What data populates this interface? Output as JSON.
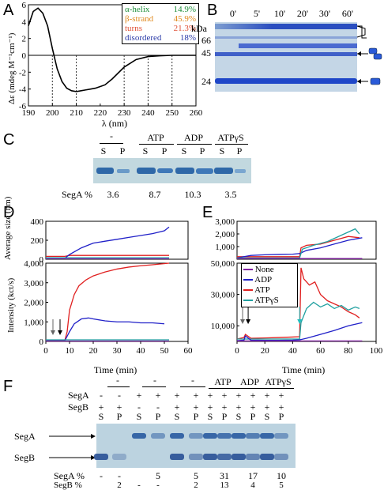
{
  "panels": {
    "A": "A",
    "B": "B",
    "C": "C",
    "D": "D",
    "E": "E",
    "F": "F"
  },
  "panelA": {
    "chart_data": {
      "type": "line",
      "xlabel": "λ (nm)",
      "ylabel": "Δε (mdeg M⁻¹cm⁻¹)",
      "xlim": [
        190,
        260
      ],
      "ylim": [
        -6,
        6
      ],
      "x_ticks": [
        190,
        200,
        210,
        220,
        230,
        240,
        250,
        260
      ],
      "y_ticks": [
        -6,
        -4,
        -2,
        0,
        2,
        4,
        6
      ],
      "series": [
        {
          "x": [
            190,
            192,
            194,
            196,
            198,
            200,
            202,
            204,
            206,
            208,
            210,
            212,
            214,
            216,
            218,
            220,
            222,
            225,
            230,
            235,
            240,
            245,
            250,
            255,
            260
          ],
          "values": [
            3.5,
            5.2,
            5.6,
            5.0,
            3.5,
            0.8,
            -1.6,
            -3.1,
            -3.9,
            -4.2,
            -4.3,
            -4.2,
            -4.1,
            -4.0,
            -3.9,
            -3.7,
            -3.5,
            -2.8,
            -1.4,
            -0.5,
            -0.15,
            -0.05,
            0,
            0,
            0
          ]
        }
      ],
      "dashed_x": [
        200,
        210,
        230,
        240,
        250
      ],
      "legend": [
        {
          "label": "α-helix",
          "value": "14.9%",
          "color": "#1f8f3a"
        },
        {
          "label": "β-strand",
          "value": "45.9%",
          "color": "#e08a1e"
        },
        {
          "label": "turns",
          "value": "21.3%",
          "color": "#e0543a"
        },
        {
          "label": "disordered",
          "value": "18%",
          "color": "#2a3aa8"
        }
      ]
    }
  },
  "panelB": {
    "times": [
      "0'",
      "5'",
      "10'",
      "20'",
      "30'",
      "60'"
    ],
    "kda_label": "kDa",
    "markers": [
      "66",
      "45",
      "24"
    ]
  },
  "panelC": {
    "groups": [
      "-",
      "ATP",
      "ADP",
      "ATPγS"
    ],
    "lanes": [
      "S",
      "P",
      "S",
      "P",
      "S",
      "P",
      "S",
      "P"
    ],
    "row_label": "SegA %",
    "values": [
      "3.6",
      "8.7",
      "10.3",
      "3.5"
    ]
  },
  "panelD": {
    "chart_data": [
      {
        "type": "line",
        "ylabel": "Average size (nm)",
        "xlim": [
          0,
          60
        ],
        "ylim": [
          0,
          400
        ],
        "y_ticks": [
          "0",
          "200",
          "400"
        ],
        "series": [
          {
            "name": "ATP",
            "color": "#e02020",
            "x": [
              0,
              8,
              10,
              20,
              30,
              40,
              52
            ],
            "values": [
              30,
              30,
              40,
              40,
              40,
              40,
              40
            ]
          },
          {
            "name": "ADP",
            "color": "#2020c8",
            "x": [
              0,
              8,
              10,
              15,
              20,
              25,
              30,
              35,
              40,
              45,
              50,
              52
            ],
            "values": [
              10,
              10,
              50,
              120,
              170,
              190,
              210,
              230,
              250,
              270,
              300,
              340
            ]
          },
          {
            "name": "ATPγS",
            "color": "#20a0a0",
            "x": [
              0,
              52
            ],
            "values": [
              15,
              15
            ]
          },
          {
            "name": "None",
            "color": "#8020a0",
            "x": [
              0,
              52
            ],
            "values": [
              5,
              5
            ]
          }
        ]
      },
      {
        "type": "line",
        "xlabel": "Time (min)",
        "ylabel": "Intensity (kct/s)",
        "xlim": [
          0,
          60
        ],
        "ylim": [
          0,
          4000
        ],
        "x_ticks": [
          "0",
          "10",
          "20",
          "30",
          "40",
          "50",
          "60"
        ],
        "y_ticks": [
          "0",
          "1,000",
          "2,000",
          "3,000",
          "4,000"
        ],
        "series": [
          {
            "name": "ATP",
            "color": "#e02020",
            "x": [
              0,
              8,
              9,
              10,
              12,
              14,
              17,
              20,
              25,
              30,
              35,
              40,
              45,
              52
            ],
            "values": [
              50,
              50,
              500,
              1600,
              2400,
              2850,
              3150,
              3350,
              3550,
              3700,
              3800,
              3870,
              3920,
              4000
            ]
          },
          {
            "name": "ADP",
            "color": "#2020c8",
            "x": [
              0,
              8,
              10,
              12,
              15,
              18,
              20,
              25,
              30,
              35,
              40,
              45,
              50
            ],
            "values": [
              30,
              30,
              500,
              900,
              1150,
              1200,
              1150,
              1050,
              1000,
              1000,
              950,
              950,
              900
            ]
          },
          {
            "name": "ATPγS",
            "color": "#20a0a0",
            "x": [
              0,
              52
            ],
            "values": [
              80,
              80
            ]
          },
          {
            "name": "None",
            "color": "#8020a0",
            "x": [
              0,
              52
            ],
            "values": [
              20,
              20
            ]
          }
        ]
      }
    ]
  },
  "panelE": {
    "legend": [
      {
        "label": "None",
        "color": "#8020a0"
      },
      {
        "label": "ADP",
        "color": "#2020c8"
      },
      {
        "label": "ATP",
        "color": "#e02020"
      },
      {
        "label": "ATPγS",
        "color": "#20a0a0"
      }
    ],
    "chart_data": [
      {
        "type": "line",
        "xlim": [
          0,
          100
        ],
        "ylim": [
          0,
          3000
        ],
        "y_ticks": [
          "1,000",
          "2,000",
          "3,000"
        ],
        "series": [
          {
            "name": "ATP",
            "color": "#e02020",
            "x": [
              0,
              45,
              46,
              50,
              60,
              70,
              80,
              88
            ],
            "values": [
              200,
              200,
              900,
              1100,
              1200,
              1500,
              1800,
              1700
            ]
          },
          {
            "name": "ADP",
            "color": "#2020c8",
            "x": [
              0,
              10,
              20,
              30,
              40,
              45,
              50,
              60,
              70,
              80,
              90
            ],
            "values": [
              100,
              300,
              350,
              380,
              400,
              450,
              700,
              900,
              1200,
              1500,
              1700
            ]
          },
          {
            "name": "ATPγS",
            "color": "#20a0a0",
            "x": [
              0,
              45,
              47,
              55,
              65,
              75,
              85,
              88
            ],
            "values": [
              100,
              100,
              800,
              1100,
              1400,
              1900,
              2400,
              2000
            ]
          },
          {
            "name": "None",
            "color": "#8020a0",
            "x": [
              0,
              90
            ],
            "values": [
              50,
              50
            ]
          }
        ]
      },
      {
        "type": "line",
        "xlabel": "Time (min)",
        "xlim": [
          0,
          100
        ],
        "ylim": [
          0,
          50000
        ],
        "x_ticks": [
          "0",
          "20",
          "40",
          "60",
          "80",
          "100"
        ],
        "y_ticks": [
          "10,000",
          "30,000",
          "50,000"
        ],
        "series": [
          {
            "name": "ATP",
            "color": "#e02020",
            "x": [
              0,
              5,
              6,
              10,
              20,
              30,
              40,
              45,
              46,
              48,
              52,
              56,
              60,
              65,
              70,
              75,
              80,
              85,
              88
            ],
            "values": [
              1500,
              2500,
              4500,
              2000,
              2200,
              2500,
              2800,
              3000,
              47000,
              40000,
              36000,
              38000,
              30000,
              26000,
              24000,
              22000,
              19000,
              17000,
              15000
            ]
          },
          {
            "name": "ATPγS",
            "color": "#20a0a0",
            "x": [
              0,
              45,
              46,
              50,
              55,
              60,
              65,
              70,
              75,
              80,
              85,
              88
            ],
            "values": [
              1500,
              1500,
              12000,
              21000,
              25000,
              22000,
              24000,
              21000,
              23000,
              20000,
              22000,
              21000
            ]
          },
          {
            "name": "ADP",
            "color": "#2020c8",
            "x": [
              0,
              5,
              6,
              10,
              20,
              30,
              40,
              45,
              50,
              60,
              70,
              80,
              90
            ],
            "values": [
              500,
              800,
              3500,
              800,
              700,
              700,
              800,
              1000,
              2000,
              4500,
              7000,
              10000,
              12000
            ]
          },
          {
            "name": "None",
            "color": "#8020a0",
            "x": [
              0,
              90
            ],
            "values": [
              300,
              300
            ]
          }
        ]
      }
    ]
  },
  "panelF": {
    "group_labels": [
      "-",
      "-",
      "-",
      "ATP",
      "ADP",
      "ATPγS"
    ],
    "segA_label": "SegA",
    "segB_label": "SegB",
    "segA_signs": [
      "-",
      "-",
      "+",
      "+",
      "+",
      "+",
      "+",
      "+",
      "+",
      "+",
      "+",
      "+"
    ],
    "segB_signs": [
      "+",
      "+",
      "-",
      "-",
      "+",
      "+",
      "+",
      "+",
      "+",
      "+",
      "+",
      "+"
    ],
    "lanes": [
      "S",
      "P",
      "S",
      "P",
      "S",
      "P",
      "S",
      "P",
      "S",
      "P",
      "S",
      "P"
    ],
    "gel_segA": "SegA",
    "gel_segB": "SegB",
    "row_a_label": "SegA %",
    "row_b_label": "SegB %",
    "row_a": [
      "-",
      "-",
      "5",
      "5",
      "31",
      "17",
      "10"
    ],
    "row_b": [
      "2",
      "-",
      "-",
      "2",
      "13",
      "4",
      "5"
    ]
  }
}
